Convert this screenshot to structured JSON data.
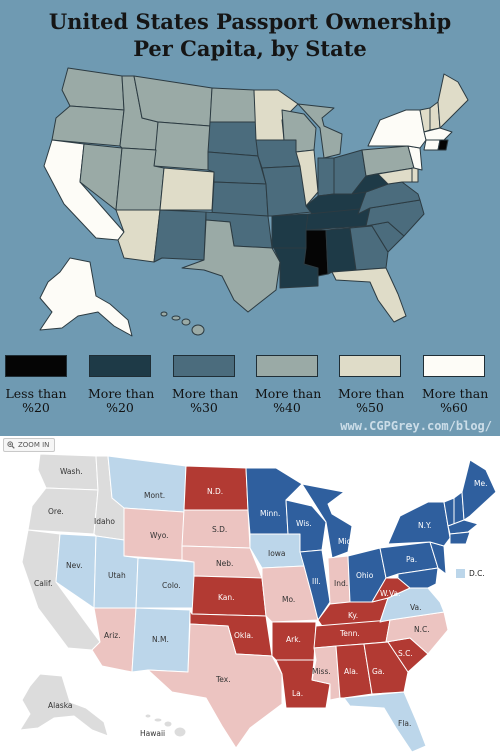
{
  "top_map": {
    "title_line1": "United States Passport Ownership",
    "title_line2": "Per Capita, by State",
    "site": "www.CGPGrey.com/blog/",
    "legend": [
      {
        "line1": "Less than",
        "line2": "%20",
        "color": "#050505"
      },
      {
        "line1": "More than",
        "line2": "%20",
        "color": "#1e3a47"
      },
      {
        "line1": "More than",
        "line2": "%30",
        "color": "#4b6c7d"
      },
      {
        "line1": "More than",
        "line2": "%40",
        "color": "#9aaaa6"
      },
      {
        "line1": "More than",
        "line2": "%50",
        "color": "#dfdcc8"
      },
      {
        "line1": "More than",
        "line2": "%60",
        "color": "#fdfcf7"
      }
    ]
  },
  "bottom_map": {
    "zoom_label": "ZOOM IN",
    "dc_label": "D.C.",
    "colors": {
      "strong_dem": "#2f5f9e",
      "lean_dem": "#bcd6ea",
      "lean_rep": "#ecc4c1",
      "strong_rep": "#b23a33",
      "no_label": "#dcdcdc"
    },
    "state_labels": {
      "wash": "Wash.",
      "ore": "Ore.",
      "idaho": "Idaho",
      "mont": "Mont.",
      "nd": "N.D.",
      "minn": "Minn.",
      "wis": "Wis.",
      "mich": "Mich.",
      "ny": "N.Y.",
      "me": "Me.",
      "calif": "Calif.",
      "nev": "Nev.",
      "utah": "Utah",
      "wyo": "Wyo.",
      "sd": "S.D.",
      "neb": "Neb.",
      "iowa": "Iowa",
      "ill": "Ill.",
      "ind": "Ind.",
      "ohio": "Ohio",
      "pa": "Pa.",
      "colo": "Colo.",
      "kan": "Kan.",
      "mo": "Mo.",
      "ky": "Ky.",
      "wva": "W.Va.",
      "va": "Va.",
      "ariz": "Ariz.",
      "nm": "N.M.",
      "okla": "Okla.",
      "ark": "Ark.",
      "tenn": "Tenn.",
      "nc": "N.C.",
      "sc": "S.C.",
      "tex": "Tex.",
      "miss": "Miss.",
      "ala": "Ala.",
      "ga": "Ga.",
      "la": "La.",
      "fla": "Fla.",
      "alaska": "Alaska",
      "hawaii": "Hawaii"
    }
  }
}
